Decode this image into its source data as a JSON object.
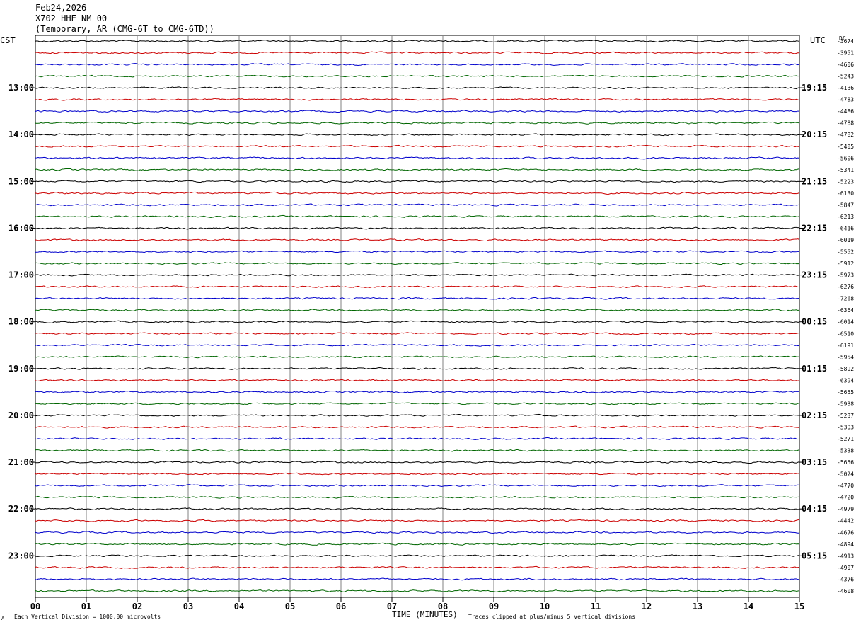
{
  "header": {
    "date": "Feb24,2026",
    "station": "X702 HHE NM 00",
    "network": "(Temporary, AR (CMG-6T to CMG-6TD))"
  },
  "left_tz": "CST",
  "right_tz": "UTC",
  "dc_label": "DC",
  "footer": {
    "scale_note": "Each Vertical Division = 1000.00 microvolts",
    "clip_note": "Traces clipped at plus/minus 5 vertical divisions",
    "corner_mark": "A"
  },
  "chart_data": {
    "type": "line",
    "title": "",
    "xlabel": "TIME (MINUTES)",
    "ylabel": "",
    "x_range": [
      0,
      15
    ],
    "x_ticks": [
      "00",
      "01",
      "02",
      "03",
      "04",
      "05",
      "06",
      "07",
      "08",
      "09",
      "10",
      "11",
      "12",
      "13",
      "14",
      "15"
    ],
    "trace_minutes": 15,
    "trace_colors": [
      "#000000",
      "#cc0000",
      "#0000cc",
      "#006600"
    ],
    "left_hour_labels": [
      "13:00",
      "14:00",
      "15:00",
      "16:00",
      "17:00",
      "18:00",
      "19:00",
      "20:00",
      "21:00",
      "22:00",
      "23:00"
    ],
    "right_hour_labels": [
      "19:15",
      "20:15",
      "21:15",
      "22:15",
      "23:15",
      "00:15",
      "01:15",
      "02:15",
      "03:15",
      "04:15",
      "05:15"
    ],
    "dc_offsets": [
      -3674,
      -3951,
      -4606,
      -5243,
      -4136,
      -4783,
      -4486,
      -4788,
      -4782,
      -5405,
      -5606,
      -5341,
      -5223,
      -6130,
      -5847,
      -6213,
      -6416,
      -6019,
      -5552,
      -5912,
      -5973,
      -6276,
      -7268,
      -6364,
      -6014,
      -6510,
      -6191,
      -5954,
      -5892,
      -6394,
      -5655,
      -5938,
      -5237,
      -5303,
      -5271,
      -5338,
      -5656,
      -5024,
      -4770,
      -4720,
      -4979,
      -4442,
      -4676,
      -4894,
      -4913,
      -4907,
      -4376,
      -4608
    ]
  }
}
